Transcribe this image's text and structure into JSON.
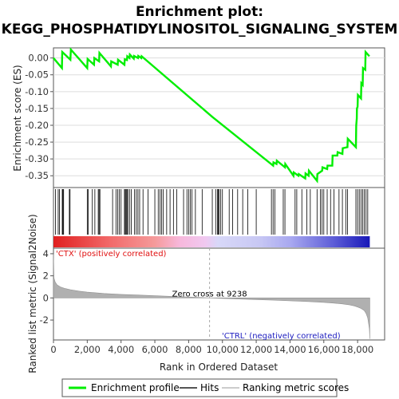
{
  "chart_data": {
    "type": "line",
    "title_line1": "Enrichment plot:",
    "title_line2": "KEGG_PHOSPHATIDYLINOSITOL_SIGNALING_SYSTEM",
    "es_panel": {
      "ylabel": "Enrichment score (ES)",
      "ylim": [
        -0.385,
        0.03
      ],
      "yticks": [
        0.0,
        -0.05,
        -0.1,
        -0.15,
        -0.2,
        -0.25,
        -0.3,
        -0.35
      ],
      "ytick_labels": [
        "0.00",
        "-0.05",
        "-0.10",
        "-0.15",
        "-0.20",
        "-0.25",
        "-0.30",
        "-0.35"
      ],
      "series_name": "Enrichment profile",
      "x": [
        0,
        500,
        520,
        1000,
        1030,
        2000,
        2020,
        2400,
        2420,
        2700,
        2720,
        3400,
        3420,
        3800,
        3820,
        4200,
        4220,
        4350,
        4370,
        4500,
        4520,
        4750,
        4770,
        5000,
        5020,
        5200,
        5220,
        9400,
        13000,
        13020,
        13200,
        13220,
        13700,
        13720,
        14200,
        14220,
        14500,
        14520,
        14900,
        14920,
        15100,
        15120,
        15600,
        15620,
        15900,
        15920,
        16200,
        16220,
        16500,
        16520,
        16800,
        16820,
        17100,
        17120,
        17400,
        17420,
        17900,
        17920,
        17950,
        17960,
        18000,
        18020,
        18200,
        18220,
        18300,
        18320,
        18450,
        18470,
        18700
      ],
      "y": [
        0.0,
        -0.03,
        0.018,
        -0.005,
        0.025,
        -0.03,
        -0.003,
        -0.02,
        0.0,
        -0.01,
        0.015,
        -0.025,
        -0.01,
        -0.02,
        -0.005,
        -0.02,
        -0.004,
        -0.006,
        0.005,
        0.0,
        0.01,
        -0.002,
        0.006,
        0.0,
        0.006,
        0.0,
        0.005,
        -0.175,
        -0.32,
        -0.31,
        -0.315,
        -0.305,
        -0.325,
        -0.315,
        -0.35,
        -0.34,
        -0.35,
        -0.345,
        -0.358,
        -0.343,
        -0.35,
        -0.335,
        -0.365,
        -0.345,
        -0.335,
        -0.325,
        -0.33,
        -0.32,
        -0.32,
        -0.29,
        -0.29,
        -0.28,
        -0.285,
        -0.268,
        -0.265,
        -0.24,
        -0.265,
        -0.2,
        -0.18,
        -0.15,
        -0.145,
        -0.11,
        -0.12,
        -0.075,
        -0.08,
        -0.03,
        -0.035,
        0.018,
        0.005
      ]
    },
    "hits": [
      120,
      280,
      350,
      520,
      560,
      600,
      940,
      980,
      2000,
      2050,
      2300,
      2450,
      2650,
      2700,
      2750,
      3500,
      3700,
      3800,
      3900,
      4000,
      4200,
      4250,
      4300,
      4350,
      4400,
      4500,
      4600,
      4800,
      4900,
      5000,
      5100,
      5300,
      5600,
      6000,
      6200,
      6300,
      6400,
      6500,
      6700,
      6900,
      7100,
      7300,
      7700,
      7900,
      8000,
      8100,
      8200,
      8400,
      8800,
      9400,
      9600,
      9700,
      9750,
      9800,
      9900,
      10000,
      10400,
      10600,
      10900,
      11200,
      11500,
      12000,
      12900,
      13000,
      13100,
      13600,
      13700,
      14300,
      14400,
      14700,
      15000,
      15200,
      15600,
      15800,
      15900,
      16000,
      16200,
      16400,
      16600,
      16900,
      17100,
      17300,
      17400,
      17900,
      18000,
      18100,
      18200,
      18300,
      18400,
      18500,
      18600
    ],
    "rank_panel": {
      "ylabel": "Ranked list metric (Signal2Noise)",
      "xlabel": "Rank in Ordered Dataset",
      "ylim": [
        -3.8,
        4.5
      ],
      "yticks": [
        4,
        2,
        0,
        -2
      ],
      "xlim": [
        0,
        19600
      ],
      "xticks": [
        0,
        2000,
        4000,
        6000,
        8000,
        10000,
        12000,
        14000,
        16000,
        18000
      ],
      "xtick_labels": [
        "0",
        "2,000",
        "4,000",
        "6,000",
        "8,000",
        "10,000",
        "12,000",
        "14,000",
        "16,000",
        "18,000"
      ],
      "zero_cross": 9238,
      "zero_cross_label": "Zero cross at 9238",
      "pos_label": "'CTX' (positively correlated)",
      "neg_label": "'CTRL' (negatively correlated)",
      "metric_points": {
        "x": [
          0,
          30,
          100,
          200,
          400,
          700,
          1000,
          1500,
          2000,
          3000,
          4000,
          5000,
          6000,
          7000,
          8000,
          9238,
          10000,
          11000,
          12000,
          13000,
          14000,
          15000,
          16000,
          16500,
          17000,
          17500,
          17800,
          18000,
          18200,
          18400,
          18500,
          18600,
          18700,
          18720
        ],
        "y": [
          4.0,
          1.8,
          1.45,
          1.2,
          1.0,
          0.85,
          0.75,
          0.62,
          0.52,
          0.4,
          0.32,
          0.26,
          0.2,
          0.14,
          0.08,
          0.0,
          -0.05,
          -0.1,
          -0.15,
          -0.2,
          -0.26,
          -0.32,
          -0.4,
          -0.46,
          -0.52,
          -0.62,
          -0.72,
          -0.82,
          -0.95,
          -1.15,
          -1.4,
          -1.8,
          -2.8,
          -3.7
        ]
      }
    },
    "legend": [
      {
        "label": "Enrichment profile",
        "color": "#00ee00"
      },
      {
        "label": "Hits",
        "color": "#555555"
      },
      {
        "label": "Ranking metric scores",
        "color": "#cccccc"
      }
    ],
    "colors": {
      "profile": "#00ee00",
      "hits": "#000000",
      "metric_fill": "#b0b0b0",
      "zero_line": "#aaaaaa",
      "panel_border": "#555555"
    }
  }
}
